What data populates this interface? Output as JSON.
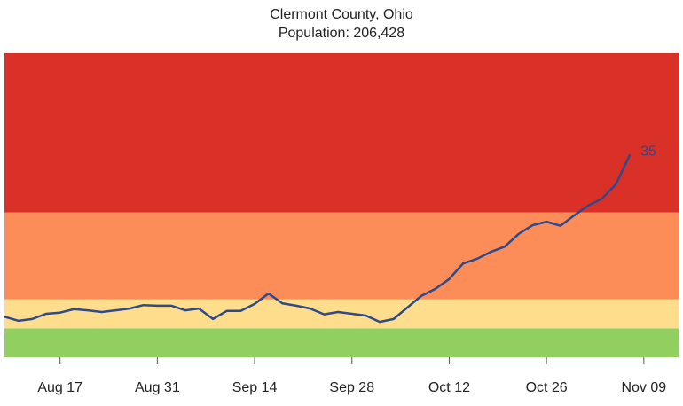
{
  "chart_data": {
    "type": "line",
    "title": "Clermont County, Ohio",
    "subtitle": "Population: 206,428",
    "x": [
      "Aug 09",
      "Aug 11",
      "Aug 13",
      "Aug 15",
      "Aug 17",
      "Aug 19",
      "Aug 21",
      "Aug 23",
      "Aug 25",
      "Aug 27",
      "Aug 29",
      "Aug 31",
      "Sep 02",
      "Sep 04",
      "Sep 06",
      "Sep 08",
      "Sep 10",
      "Sep 12",
      "Sep 14",
      "Sep 16",
      "Sep 18",
      "Sep 20",
      "Sep 22",
      "Sep 24",
      "Sep 26",
      "Sep 28",
      "Sep 30",
      "Oct 02",
      "Oct 04",
      "Oct 06",
      "Oct 08",
      "Oct 10",
      "Oct 12",
      "Oct 14",
      "Oct 16",
      "Oct 18",
      "Oct 20",
      "Oct 22",
      "Oct 24",
      "Oct 26",
      "Oct 28",
      "Oct 30",
      "Nov 01",
      "Nov 03",
      "Nov 05",
      "Nov 07"
    ],
    "series": [
      {
        "color": "#2f4a8a",
        "values": [
          7.0,
          6.3,
          6.6,
          7.5,
          7.7,
          8.3,
          8.1,
          7.8,
          8.1,
          8.4,
          9.0,
          8.9,
          8.9,
          8.1,
          8.4,
          6.6,
          8.0,
          8.0,
          9.2,
          11.0,
          9.3,
          8.9,
          8.4,
          7.4,
          7.8,
          7.5,
          7.2,
          6.1,
          6.6,
          8.6,
          10.6,
          11.8,
          13.5,
          16.2,
          17.0,
          18.2,
          19.1,
          21.3,
          22.8,
          23.4,
          22.7,
          24.5,
          26.2,
          27.4,
          29.9,
          35
        ]
      }
    ],
    "xlim": [
      "Aug 09",
      "Nov 14"
    ],
    "xticks": [
      "Aug 17",
      "Aug 31",
      "Sep 14",
      "Sep 28",
      "Oct 12",
      "Oct 26",
      "Nov 09"
    ],
    "ylim": [
      0,
      52.5
    ],
    "bands": [
      {
        "from": 0,
        "to": 5,
        "color": "#91cf60"
      },
      {
        "from": 5,
        "to": 10,
        "color": "#fede8c"
      },
      {
        "from": 10,
        "to": 25,
        "color": "#fc8d59"
      },
      {
        "from": 25,
        "to": 52.5,
        "color": "#d93127"
      }
    ]
  }
}
